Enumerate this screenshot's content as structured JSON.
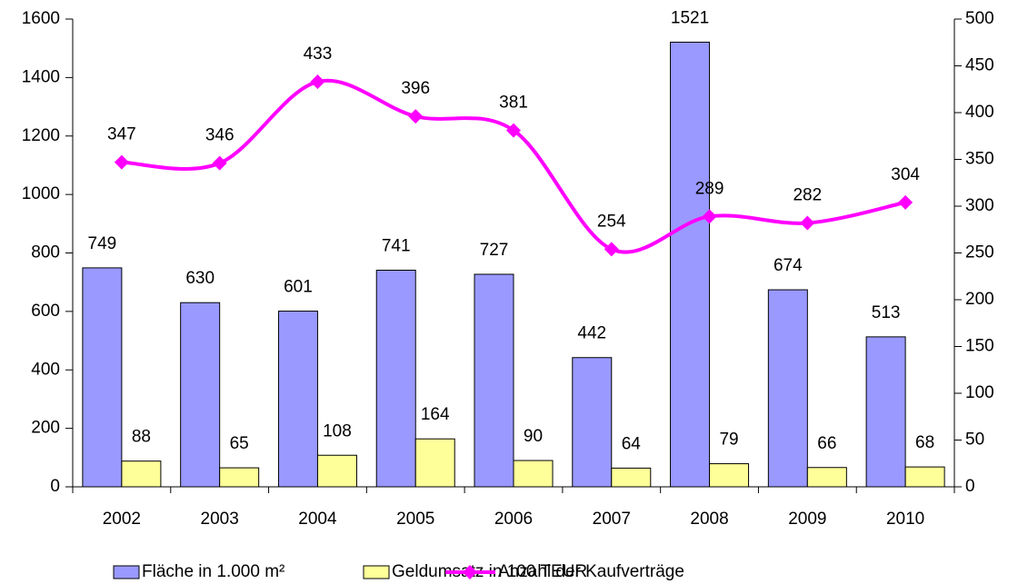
{
  "chart_data": {
    "type": "bar",
    "categories": [
      "2002",
      "2003",
      "2004",
      "2005",
      "2006",
      "2007",
      "2008",
      "2009",
      "2010"
    ],
    "series": [
      {
        "name": "Fläche in 1.000 m²",
        "color": "#9999ff",
        "values": [
          749,
          630,
          601,
          741,
          727,
          442,
          1521,
          674,
          513
        ]
      },
      {
        "name": "Geldumsatz in 100 TEUR",
        "color": "#ffff99",
        "values": [
          88,
          65,
          108,
          164,
          90,
          64,
          79,
          66,
          68
        ]
      },
      {
        "name": "Anzahl der Kaufverträge",
        "color": "#ff00ff",
        "type": "line",
        "axis": "y2",
        "values": [
          347,
          346,
          433,
          396,
          381,
          254,
          289,
          282,
          304
        ]
      }
    ],
    "ylim": [
      0,
      1600
    ],
    "yticks": [
      0,
      200,
      400,
      600,
      800,
      1000,
      1200,
      1400,
      1600
    ],
    "y2lim": [
      0,
      500
    ],
    "y2ticks": [
      0,
      50,
      100,
      150,
      200,
      250,
      300,
      350,
      400,
      450,
      500
    ],
    "legend": "bottom"
  }
}
